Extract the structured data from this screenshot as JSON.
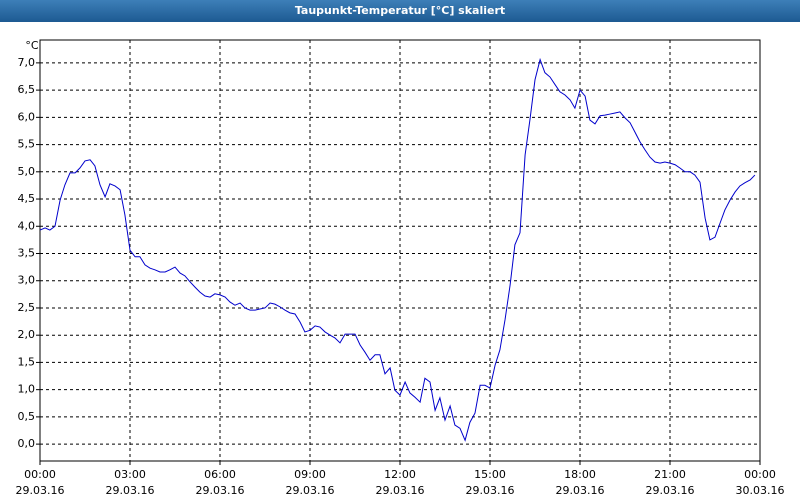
{
  "chart_data": {
    "type": "line",
    "title": "Taupunkt-Temperatur [°C] skaliert",
    "y_label": "°C",
    "color": "#0000cc",
    "grid": true,
    "xlim": [
      0,
      24
    ],
    "xticks": [
      {
        "value": 0,
        "label": [
          "00:00",
          "29.03.16"
        ]
      },
      {
        "value": 3,
        "label": [
          "03:00",
          "29.03.16"
        ]
      },
      {
        "value": 6,
        "label": [
          "06:00",
          "29.03.16"
        ]
      },
      {
        "value": 9,
        "label": [
          "09:00",
          "29.03.16"
        ]
      },
      {
        "value": 12,
        "label": [
          "12:00",
          "29.03.16"
        ]
      },
      {
        "value": 15,
        "label": [
          "15:00",
          "29.03.16"
        ]
      },
      {
        "value": 18,
        "label": [
          "18:00",
          "29.03.16"
        ]
      },
      {
        "value": 21,
        "label": [
          "21:00",
          "29.03.16"
        ]
      },
      {
        "value": 24,
        "label": [
          "00:00",
          "30.03.16"
        ]
      }
    ],
    "ylim": [
      -0.31,
      7.42
    ],
    "yticks": [
      {
        "value": 0,
        "label": "0,0"
      },
      {
        "value": 0.5,
        "label": "0,5"
      },
      {
        "value": 1,
        "label": "1,0"
      },
      {
        "value": 1.5,
        "label": "1,5"
      },
      {
        "value": 2,
        "label": "2,0"
      },
      {
        "value": 2.5,
        "label": "2,5"
      },
      {
        "value": 3,
        "label": "3,0"
      },
      {
        "value": 3.5,
        "label": "3,5"
      },
      {
        "value": 4,
        "label": "4,0"
      },
      {
        "value": 4.5,
        "label": "4,5"
      },
      {
        "value": 5,
        "label": "5,0"
      },
      {
        "value": 5.5,
        "label": "5,5"
      },
      {
        "value": 6,
        "label": "6,0"
      },
      {
        "value": 6.5,
        "label": "6,5"
      },
      {
        "value": 7,
        "label": "7,0"
      }
    ],
    "x": [
      0,
      0.17,
      0.33,
      0.5,
      0.67,
      0.83,
      1,
      1.17,
      1.33,
      1.5,
      1.67,
      1.83,
      2,
      2.17,
      2.33,
      2.5,
      2.67,
      2.83,
      3,
      3.17,
      3.33,
      3.5,
      3.67,
      3.83,
      4,
      4.17,
      4.33,
      4.5,
      4.67,
      4.83,
      5,
      5.17,
      5.33,
      5.5,
      5.67,
      5.83,
      6,
      6.17,
      6.33,
      6.5,
      6.67,
      6.83,
      7,
      7.17,
      7.33,
      7.5,
      7.67,
      7.83,
      8,
      8.17,
      8.33,
      8.5,
      8.67,
      8.83,
      9,
      9.17,
      9.33,
      9.5,
      9.67,
      9.83,
      10,
      10.17,
      10.33,
      10.5,
      10.67,
      10.83,
      11,
      11.17,
      11.33,
      11.5,
      11.67,
      11.83,
      12,
      12.17,
      12.33,
      12.5,
      12.67,
      12.83,
      13,
      13.17,
      13.33,
      13.5,
      13.67,
      13.83,
      14,
      14.17,
      14.33,
      14.5,
      14.67,
      14.83,
      15,
      15.17,
      15.33,
      15.5,
      15.67,
      15.83,
      16,
      16.17,
      16.33,
      16.5,
      16.67,
      16.83,
      17,
      17.17,
      17.33,
      17.5,
      17.67,
      17.83,
      18,
      18.17,
      18.33,
      18.5,
      18.67,
      18.83,
      19,
      19.17,
      19.33,
      19.5,
      19.67,
      19.83,
      20,
      20.17,
      20.33,
      20.5,
      20.67,
      20.83,
      21,
      21.17,
      21.33,
      21.5,
      21.67,
      21.83,
      22,
      22.17,
      22.33,
      22.5,
      22.67,
      22.83,
      23,
      23.17,
      23.33,
      23.5,
      23.67,
      23.83
    ],
    "values": [
      3.93,
      3.97,
      3.93,
      4.0,
      4.48,
      4.76,
      4.98,
      4.98,
      5.07,
      5.2,
      5.22,
      5.11,
      4.76,
      4.54,
      4.78,
      4.74,
      4.67,
      4.21,
      3.56,
      3.44,
      3.44,
      3.29,
      3.23,
      3.2,
      3.16,
      3.16,
      3.2,
      3.25,
      3.14,
      3.09,
      2.98,
      2.88,
      2.79,
      2.72,
      2.7,
      2.76,
      2.74,
      2.7,
      2.61,
      2.55,
      2.59,
      2.5,
      2.46,
      2.46,
      2.48,
      2.5,
      2.59,
      2.57,
      2.52,
      2.46,
      2.41,
      2.39,
      2.24,
      2.06,
      2.09,
      2.17,
      2.15,
      2.06,
      2.0,
      1.95,
      1.86,
      2.02,
      2.02,
      2.02,
      1.82,
      1.69,
      1.54,
      1.64,
      1.64,
      1.29,
      1.4,
      0.99,
      0.9,
      1.14,
      0.94,
      0.86,
      0.77,
      1.21,
      1.14,
      0.62,
      0.85,
      0.44,
      0.7,
      0.35,
      0.29,
      0.07,
      0.4,
      0.57,
      1.08,
      1.08,
      1.03,
      1.45,
      1.73,
      2.28,
      2.92,
      3.66,
      3.88,
      5.31,
      5.95,
      6.69,
      7.06,
      6.82,
      6.74,
      6.6,
      6.47,
      6.41,
      6.32,
      6.17,
      6.5,
      6.39,
      5.95,
      5.88,
      6.03,
      6.04,
      6.06,
      6.08,
      6.1,
      5.99,
      5.9,
      5.73,
      5.55,
      5.4,
      5.27,
      5.18,
      5.16,
      5.18,
      5.16,
      5.13,
      5.07,
      5.0,
      5.0,
      4.94,
      4.81,
      4.15,
      3.75,
      3.8,
      4.06,
      4.3,
      4.48,
      4.63,
      4.74,
      4.8,
      4.85,
      4.94
    ]
  }
}
